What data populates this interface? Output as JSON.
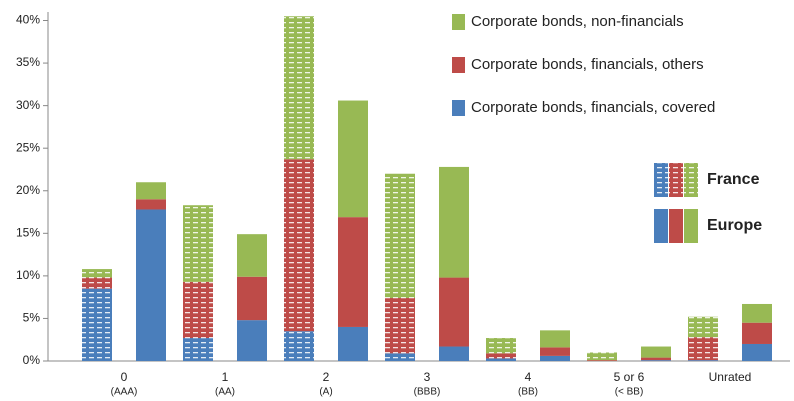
{
  "chart_data": {
    "type": "grouped-stacked-bar",
    "categories": [
      [
        "0",
        "(AAA)"
      ],
      [
        "1",
        "(AA)"
      ],
      [
        "2",
        "(A)"
      ],
      [
        "3",
        "(BBB)"
      ],
      [
        "4",
        "(BB)"
      ],
      [
        "5 or 6",
        "(< BB)"
      ],
      [
        "Unrated"
      ]
    ],
    "groups": [
      "France",
      "Europe"
    ],
    "series": [
      {
        "name": "Corporate bonds, financials, covered",
        "color": "#4a7ebb",
        "values": [
          [
            8.5,
            2.7,
            3.5,
            0.9,
            0.3,
            0,
            0.1
          ],
          [
            17.8,
            4.8,
            4.0,
            1.7,
            0.6,
            0.1,
            2.0
          ]
        ]
      },
      {
        "name": "Corporate bonds, financials, others",
        "color": "#be4b48",
        "values": [
          [
            1.3,
            6.6,
            20.2,
            6.5,
            0.6,
            0.1,
            2.7
          ],
          [
            1.2,
            5.1,
            12.9,
            8.1,
            1.0,
            0.3,
            2.5
          ]
        ]
      },
      {
        "name": "Corporate bonds, non-financials",
        "color": "#98b954",
        "values": [
          [
            1.0,
            9.0,
            16.8,
            14.6,
            1.8,
            0.9,
            2.4
          ],
          [
            2.0,
            5.0,
            13.7,
            13.0,
            2.0,
            1.3,
            2.2
          ]
        ]
      }
    ],
    "ylim": [
      0,
      41
    ],
    "yticks": [
      {
        "value": 0,
        "label": "0%"
      },
      {
        "value": 5,
        "label": "5%"
      },
      {
        "value": 10,
        "label": "10%"
      },
      {
        "value": 15,
        "label": "15%"
      },
      {
        "value": 20,
        "label": "20%"
      },
      {
        "value": 25,
        "label": "25%"
      },
      {
        "value": 30,
        "label": "30%"
      },
      {
        "value": 35,
        "label": "35%"
      },
      {
        "value": 40,
        "label": "40%"
      }
    ]
  }
}
